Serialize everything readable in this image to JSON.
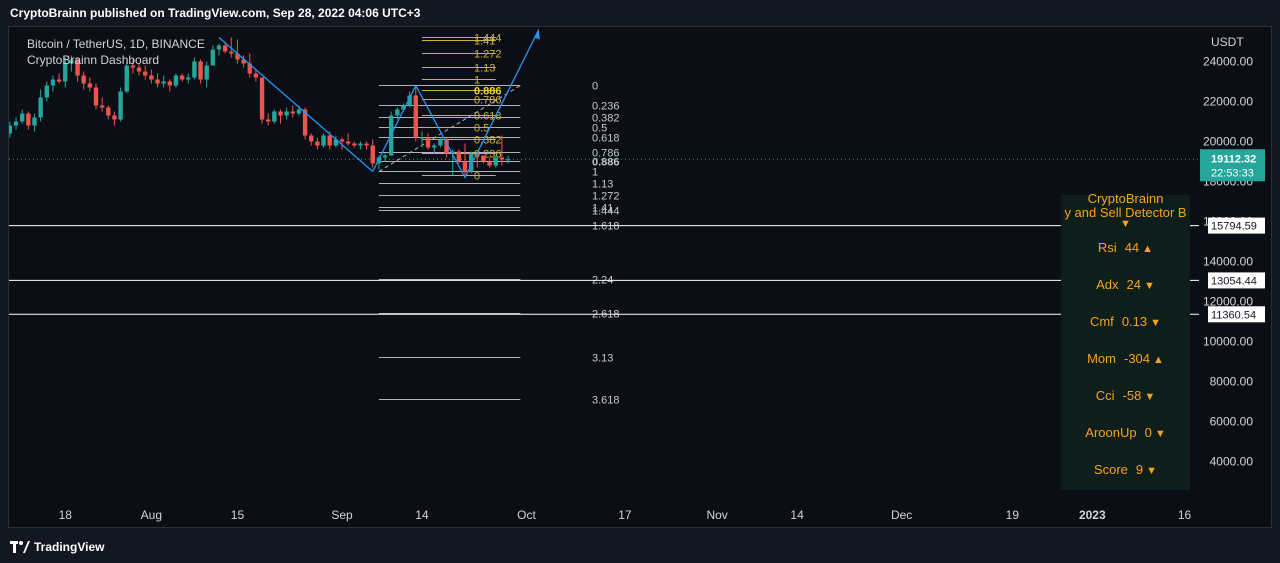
{
  "header": {
    "text": "CryptoBrainn published on TradingView.com, Sep 28, 2022 04:06 UTC+3"
  },
  "footer": {
    "brand": "TradingView"
  },
  "legend": {
    "symbol": "Bitcoin / TetherUS, 1D, BINANCE",
    "indicator": "CryptoBrainn Dashboard"
  },
  "price_axis": {
    "currency": "USDT",
    "last_price": "19112.32",
    "countdown": "22:53:33",
    "last_price_color": "#26a69a"
  },
  "dashboard": {
    "title_line1": "CryptoBrainn",
    "title_line2": "y and Sell Detector  B",
    "marker": "▼",
    "rows": [
      {
        "label": "Rsi",
        "value": "44",
        "arrow": "▲"
      },
      {
        "label": "Adx",
        "value": "24",
        "arrow": "▼"
      },
      {
        "label": "Cmf",
        "value": "0.13",
        "arrow": "▼"
      },
      {
        "label": "Mom",
        "value": "-304",
        "arrow": "▲"
      },
      {
        "label": "Cci",
        "value": "-58",
        "arrow": "▼"
      },
      {
        "label": "AroonUp",
        "value": "0",
        "arrow": "▼"
      },
      {
        "label": "Score",
        "value": "9",
        "arrow": "▼"
      }
    ]
  },
  "chart_data": {
    "type": "candlestick",
    "title": "Bitcoin / TetherUS, 1D, BINANCE",
    "ylabel": "USDT",
    "ylim": [
      2500,
      25800
    ],
    "y_ticks": [
      4000,
      6000,
      8000,
      10000,
      12000,
      14000,
      16000,
      18000,
      20000,
      22000,
      24000
    ],
    "y_tick_labels": [
      "4000.00",
      "6000.00",
      "8000.00",
      "10000.00",
      "12000.00",
      "14000.00",
      "16000.00",
      "18000.00",
      "20000.00",
      "22000.00",
      "24000.00"
    ],
    "x_tick_labels": [
      "18",
      "Aug",
      "15",
      "Sep",
      "14",
      "Oct",
      "17",
      "Nov",
      "14",
      "Dec",
      "19",
      "2023",
      "16"
    ],
    "x_tick_dates": [
      "2022-07-18",
      "2022-08-01",
      "2022-08-15",
      "2022-09-01",
      "2022-09-14",
      "2022-10-01",
      "2022-10-17",
      "2022-11-01",
      "2022-11-14",
      "2022-12-01",
      "2022-12-19",
      "2023-01-01",
      "2023-01-16"
    ],
    "horizontal_levels": [
      {
        "price": 15794.59,
        "label": "15794.59"
      },
      {
        "price": 13054.44,
        "label": "13054.44"
      },
      {
        "price": 11360.54,
        "label": "11360.54"
      }
    ],
    "fib_large": [
      {
        "ratio": "0",
        "price": 22800
      },
      {
        "ratio": "0.236",
        "price": 21800
      },
      {
        "ratio": "0.382",
        "price": 21200
      },
      {
        "ratio": "0.5",
        "price": 20700
      },
      {
        "ratio": "0.618",
        "price": 20200
      },
      {
        "ratio": "0.786",
        "price": 19450
      },
      {
        "ratio": "0.886",
        "price": 19000
      },
      {
        "ratio": "1",
        "price": 18500
      },
      {
        "ratio": "1.13",
        "price": 17900
      },
      {
        "ratio": "1.272",
        "price": 17300
      },
      {
        "ratio": "1.41",
        "price": 16700
      },
      {
        "ratio": "1.444",
        "price": 16550
      },
      {
        "ratio": "1.618",
        "price": 15800
      },
      {
        "ratio": "2.24",
        "price": 13100
      },
      {
        "ratio": "2.618",
        "price": 11400
      },
      {
        "ratio": "3.13",
        "price": 9200
      },
      {
        "ratio": "3.618",
        "price": 7100
      }
    ],
    "fib_small": [
      {
        "ratio": "1.618",
        "price": 26000
      },
      {
        "ratio": "1.444",
        "price": 25200
      },
      {
        "ratio": "1.41",
        "price": 25050
      },
      {
        "ratio": "1.272",
        "price": 24400
      },
      {
        "ratio": "1.13",
        "price": 23700
      },
      {
        "ratio": "1",
        "price": 23100
      },
      {
        "ratio": "0.886",
        "price": 22550
      },
      {
        "ratio": "0.786",
        "price": 22100
      },
      {
        "ratio": "0.618",
        "price": 21300
      },
      {
        "ratio": "0.5",
        "price": 20700
      },
      {
        "ratio": "0.382",
        "price": 20100
      },
      {
        "ratio": "0.236",
        "price": 19400
      },
      {
        "ratio": "0",
        "price": 18300
      }
    ],
    "candles": [
      {
        "date": "2022-07-04",
        "o": 20500,
        "h": 21000,
        "l": 20200,
        "c": 20700
      },
      {
        "date": "2022-07-05",
        "o": 20700,
        "h": 20800,
        "l": 19300,
        "c": 20100
      },
      {
        "date": "2022-07-06",
        "o": 20100,
        "h": 20400,
        "l": 19700,
        "c": 19800
      },
      {
        "date": "2022-07-07",
        "o": 19800,
        "h": 20000,
        "l": 19000,
        "c": 19300
      },
      {
        "date": "2022-07-08",
        "o": 19300,
        "h": 20600,
        "l": 19200,
        "c": 20400
      },
      {
        "date": "2022-07-09",
        "o": 20400,
        "h": 21000,
        "l": 20200,
        "c": 20800
      },
      {
        "date": "2022-07-10",
        "o": 20800,
        "h": 21200,
        "l": 20600,
        "c": 21000
      },
      {
        "date": "2022-07-11",
        "o": 21000,
        "h": 21600,
        "l": 20900,
        "c": 21400
      },
      {
        "date": "2022-07-12",
        "o": 21400,
        "h": 21500,
        "l": 20600,
        "c": 20800
      },
      {
        "date": "2022-07-13",
        "o": 20800,
        "h": 21400,
        "l": 20500,
        "c": 21200
      },
      {
        "date": "2022-07-14",
        "o": 21200,
        "h": 22600,
        "l": 21000,
        "c": 22200
      },
      {
        "date": "2022-07-15",
        "o": 22200,
        "h": 23000,
        "l": 22000,
        "c": 22800
      },
      {
        "date": "2022-07-16",
        "o": 22800,
        "h": 23300,
        "l": 22500,
        "c": 23100
      },
      {
        "date": "2022-07-17",
        "o": 23100,
        "h": 23400,
        "l": 22900,
        "c": 23000
      },
      {
        "date": "2022-07-18",
        "o": 23000,
        "h": 24200,
        "l": 22700,
        "c": 23900
      },
      {
        "date": "2022-07-19",
        "o": 23900,
        "h": 24300,
        "l": 23500,
        "c": 24100
      },
      {
        "date": "2022-07-20",
        "o": 24100,
        "h": 24200,
        "l": 23000,
        "c": 23300
      },
      {
        "date": "2022-07-21",
        "o": 23300,
        "h": 23500,
        "l": 22600,
        "c": 22900
      },
      {
        "date": "2022-07-22",
        "o": 22900,
        "h": 23200,
        "l": 22500,
        "c": 22700
      },
      {
        "date": "2022-07-23",
        "o": 22700,
        "h": 22900,
        "l": 21600,
        "c": 21800
      },
      {
        "date": "2022-07-24",
        "o": 21800,
        "h": 22200,
        "l": 21500,
        "c": 21700
      },
      {
        "date": "2022-07-25",
        "o": 21700,
        "h": 21800,
        "l": 21100,
        "c": 21300
      },
      {
        "date": "2022-07-26",
        "o": 21300,
        "h": 21500,
        "l": 20800,
        "c": 21100
      },
      {
        "date": "2022-07-27",
        "o": 21100,
        "h": 22700,
        "l": 21000,
        "c": 22500
      },
      {
        "date": "2022-07-28",
        "o": 22500,
        "h": 24000,
        "l": 22400,
        "c": 23800
      },
      {
        "date": "2022-07-29",
        "o": 23800,
        "h": 24100,
        "l": 23400,
        "c": 23700
      },
      {
        "date": "2022-07-30",
        "o": 23700,
        "h": 23900,
        "l": 23300,
        "c": 23500
      },
      {
        "date": "2022-07-31",
        "o": 23500,
        "h": 23800,
        "l": 23100,
        "c": 23300
      },
      {
        "date": "2022-08-01",
        "o": 23300,
        "h": 23600,
        "l": 22900,
        "c": 23100
      },
      {
        "date": "2022-08-02",
        "o": 23100,
        "h": 23400,
        "l": 22700,
        "c": 22900
      },
      {
        "date": "2022-08-03",
        "o": 22900,
        "h": 23300,
        "l": 22700,
        "c": 23000
      },
      {
        "date": "2022-08-04",
        "o": 23000,
        "h": 23100,
        "l": 22500,
        "c": 22800
      },
      {
        "date": "2022-08-05",
        "o": 22800,
        "h": 23400,
        "l": 22700,
        "c": 23300
      },
      {
        "date": "2022-08-06",
        "o": 23300,
        "h": 23400,
        "l": 23000,
        "c": 23100
      },
      {
        "date": "2022-08-07",
        "o": 23100,
        "h": 23400,
        "l": 22900,
        "c": 23200
      },
      {
        "date": "2022-08-08",
        "o": 23200,
        "h": 24200,
        "l": 23100,
        "c": 24000
      },
      {
        "date": "2022-08-09",
        "o": 24000,
        "h": 24100,
        "l": 22900,
        "c": 23100
      },
      {
        "date": "2022-08-10",
        "o": 23100,
        "h": 24000,
        "l": 22700,
        "c": 23800
      },
      {
        "date": "2022-08-11",
        "o": 23800,
        "h": 24800,
        "l": 23800,
        "c": 24600
      },
      {
        "date": "2022-08-12",
        "o": 24600,
        "h": 24900,
        "l": 24300,
        "c": 24800
      },
      {
        "date": "2022-08-13",
        "o": 24800,
        "h": 25000,
        "l": 24400,
        "c": 24500
      },
      {
        "date": "2022-08-14",
        "o": 24500,
        "h": 25200,
        "l": 24200,
        "c": 24400
      },
      {
        "date": "2022-08-15",
        "o": 24400,
        "h": 25100,
        "l": 23900,
        "c": 24100
      },
      {
        "date": "2022-08-16",
        "o": 24100,
        "h": 24300,
        "l": 23700,
        "c": 23900
      },
      {
        "date": "2022-08-17",
        "o": 23900,
        "h": 24400,
        "l": 23200,
        "c": 23400
      },
      {
        "date": "2022-08-18",
        "o": 23400,
        "h": 23600,
        "l": 23000,
        "c": 23200
      },
      {
        "date": "2022-08-19",
        "o": 23200,
        "h": 23200,
        "l": 20900,
        "c": 21100
      },
      {
        "date": "2022-08-20",
        "o": 21100,
        "h": 21400,
        "l": 20800,
        "c": 21000
      },
      {
        "date": "2022-08-21",
        "o": 21000,
        "h": 21600,
        "l": 20900,
        "c": 21500
      },
      {
        "date": "2022-08-22",
        "o": 21500,
        "h": 21600,
        "l": 20900,
        "c": 21300
      },
      {
        "date": "2022-08-23",
        "o": 21300,
        "h": 21700,
        "l": 21100,
        "c": 21500
      },
      {
        "date": "2022-08-24",
        "o": 21500,
        "h": 21800,
        "l": 21200,
        "c": 21400
      },
      {
        "date": "2022-08-25",
        "o": 21400,
        "h": 21800,
        "l": 21300,
        "c": 21600
      },
      {
        "date": "2022-08-26",
        "o": 21600,
        "h": 21700,
        "l": 20100,
        "c": 20300
      },
      {
        "date": "2022-08-27",
        "o": 20300,
        "h": 20400,
        "l": 19800,
        "c": 20000
      },
      {
        "date": "2022-08-28",
        "o": 20000,
        "h": 20200,
        "l": 19600,
        "c": 19800
      },
      {
        "date": "2022-08-29",
        "o": 19800,
        "h": 20400,
        "l": 19700,
        "c": 20300
      },
      {
        "date": "2022-08-30",
        "o": 20300,
        "h": 20500,
        "l": 19600,
        "c": 19800
      },
      {
        "date": "2022-08-31",
        "o": 19800,
        "h": 20300,
        "l": 19700,
        "c": 20100
      },
      {
        "date": "2022-09-01",
        "o": 20100,
        "h": 20200,
        "l": 19600,
        "c": 20000
      },
      {
        "date": "2022-09-02",
        "o": 20000,
        "h": 20400,
        "l": 19800,
        "c": 19900
      },
      {
        "date": "2022-09-03",
        "o": 19900,
        "h": 20000,
        "l": 19700,
        "c": 19800
      },
      {
        "date": "2022-09-04",
        "o": 19800,
        "h": 20000,
        "l": 19600,
        "c": 19900
      },
      {
        "date": "2022-09-05",
        "o": 19900,
        "h": 20000,
        "l": 19600,
        "c": 19800
      },
      {
        "date": "2022-09-06",
        "o": 19800,
        "h": 20100,
        "l": 18700,
        "c": 18900
      },
      {
        "date": "2022-09-07",
        "o": 18900,
        "h": 19300,
        "l": 18600,
        "c": 19200
      },
      {
        "date": "2022-09-08",
        "o": 19200,
        "h": 19400,
        "l": 19000,
        "c": 19300
      },
      {
        "date": "2022-09-09",
        "o": 19300,
        "h": 21500,
        "l": 19300,
        "c": 21300
      },
      {
        "date": "2022-09-10",
        "o": 21300,
        "h": 21700,
        "l": 21100,
        "c": 21600
      },
      {
        "date": "2022-09-11",
        "o": 21600,
        "h": 21900,
        "l": 21500,
        "c": 21800
      },
      {
        "date": "2022-09-12",
        "o": 21800,
        "h": 22500,
        "l": 21700,
        "c": 22300
      },
      {
        "date": "2022-09-13",
        "o": 22300,
        "h": 22800,
        "l": 20000,
        "c": 20200
      },
      {
        "date": "2022-09-14",
        "o": 20200,
        "h": 20500,
        "l": 19700,
        "c": 20200
      },
      {
        "date": "2022-09-15",
        "o": 20200,
        "h": 20400,
        "l": 19600,
        "c": 19700
      },
      {
        "date": "2022-09-16",
        "o": 19700,
        "h": 19900,
        "l": 19400,
        "c": 19800
      },
      {
        "date": "2022-09-17",
        "o": 19800,
        "h": 20200,
        "l": 19700,
        "c": 20100
      },
      {
        "date": "2022-09-18",
        "o": 20100,
        "h": 20200,
        "l": 19200,
        "c": 19400
      },
      {
        "date": "2022-09-19",
        "o": 19400,
        "h": 19600,
        "l": 18300,
        "c": 19500
      },
      {
        "date": "2022-09-20",
        "o": 19500,
        "h": 19600,
        "l": 18900,
        "c": 19000
      },
      {
        "date": "2022-09-21",
        "o": 19000,
        "h": 19900,
        "l": 18200,
        "c": 18500
      },
      {
        "date": "2022-09-22",
        "o": 18500,
        "h": 19500,
        "l": 18400,
        "c": 19400
      },
      {
        "date": "2022-09-23",
        "o": 19400,
        "h": 19500,
        "l": 18700,
        "c": 19300
      },
      {
        "date": "2022-09-24",
        "o": 19300,
        "h": 19300,
        "l": 18900,
        "c": 19000
      },
      {
        "date": "2022-09-25",
        "o": 19000,
        "h": 19200,
        "l": 18700,
        "c": 18800
      },
      {
        "date": "2022-09-26",
        "o": 18800,
        "h": 19300,
        "l": 18700,
        "c": 19200
      },
      {
        "date": "2022-09-27",
        "o": 19200,
        "h": 20300,
        "l": 18800,
        "c": 19100
      },
      {
        "date": "2022-09-28",
        "o": 19100,
        "h": 19300,
        "l": 18900,
        "c": 19112
      }
    ]
  }
}
